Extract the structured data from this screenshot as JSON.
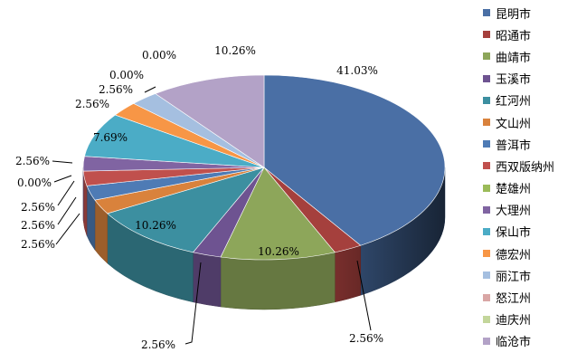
{
  "chart_data": {
    "type": "pie",
    "style": "3d",
    "title": "",
    "legend_position": "right",
    "slices": [
      {
        "name": "昆明市",
        "value": 41.03,
        "label": "41.03%",
        "color": "#4A6FA5"
      },
      {
        "name": "昭通市",
        "value": 2.56,
        "label": "2.56%",
        "color": "#A5403D"
      },
      {
        "name": "曲靖市",
        "value": 10.26,
        "label": "10.26%",
        "color": "#8DA65A"
      },
      {
        "name": "玉溪市",
        "value": 2.56,
        "label": "2.56%",
        "color": "#6E5391"
      },
      {
        "name": "红河州",
        "value": 10.26,
        "label": "10.26%",
        "color": "#3C8FA0"
      },
      {
        "name": "文山州",
        "value": 2.56,
        "label": "2.56%",
        "color": "#D9823C"
      },
      {
        "name": "普洱市",
        "value": 2.56,
        "label": "2.56%",
        "color": "#4E7BB5"
      },
      {
        "name": "西双版纳州",
        "value": 2.56,
        "label": "2.56%",
        "color": "#C0504D"
      },
      {
        "name": "楚雄州",
        "value": 0.0,
        "label": "0.00%",
        "color": "#9BBB59"
      },
      {
        "name": "大理州",
        "value": 2.56,
        "label": "2.56%",
        "color": "#8064A2"
      },
      {
        "name": "保山市",
        "value": 7.69,
        "label": "7.69%",
        "color": "#4BACC6"
      },
      {
        "name": "德宏州",
        "value": 2.56,
        "label": "2.56%",
        "color": "#F79646"
      },
      {
        "name": "丽江市",
        "value": 2.56,
        "label": "2.56%",
        "color": "#A5BFE0"
      },
      {
        "name": "怒江州",
        "value": 0.0,
        "label": "0.00%",
        "color": "#D9A6A5"
      },
      {
        "name": "迪庆州",
        "value": 0.0,
        "label": "0.00%",
        "color": "#C3D69B"
      },
      {
        "name": "临沧市",
        "value": 10.26,
        "label": "10.26%",
        "color": "#B3A2C7"
      }
    ]
  }
}
